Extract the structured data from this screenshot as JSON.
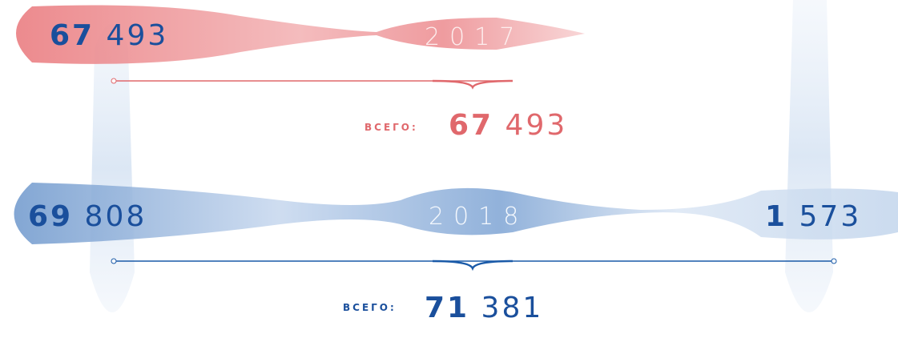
{
  "rows": [
    {
      "year": "2017",
      "left_value": "67 493",
      "total_label": "ВСЕГО:",
      "total_value": "67 493"
    },
    {
      "year": "2018",
      "left_value": "69 808",
      "right_value": "1 573",
      "total_label": "ВСЕГО:",
      "total_value": "71 381"
    }
  ]
}
